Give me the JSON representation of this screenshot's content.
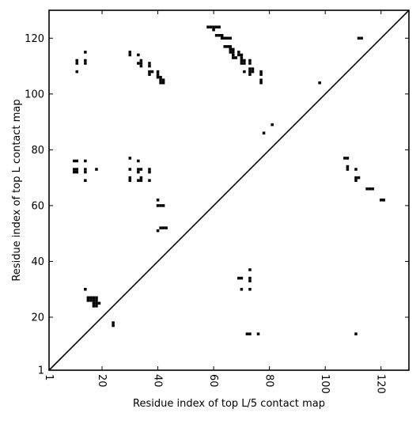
{
  "chart_data": {
    "type": "scatter",
    "title": "",
    "xlabel": "Residue index of top L/5 contact map",
    "ylabel": "Residue index of top L contact map",
    "xlim": [
      1,
      130
    ],
    "ylim": [
      1,
      130
    ],
    "x_ticks": [
      1,
      20,
      40,
      60,
      80,
      100,
      120
    ],
    "y_ticks": [
      1,
      20,
      40,
      60,
      80,
      100,
      120
    ],
    "x_tick_labels": [
      "1",
      "20",
      "40",
      "60",
      "80",
      "100",
      "120"
    ],
    "y_tick_labels": [
      "1",
      "20",
      "40",
      "60",
      "80",
      "100",
      "120"
    ],
    "x_tick_rotation": "vertical",
    "grid": false,
    "diagonal": true,
    "marker": "filled square",
    "marker_color": "#000000",
    "upper_triangle_points": [
      [
        11,
        108
      ],
      [
        11,
        111
      ],
      [
        11,
        112
      ],
      [
        14,
        111
      ],
      [
        14,
        112
      ],
      [
        14,
        115
      ],
      [
        30,
        114
      ],
      [
        30,
        115
      ],
      [
        33,
        111
      ],
      [
        33,
        114
      ],
      [
        34,
        110
      ],
      [
        34,
        111
      ],
      [
        34,
        112
      ],
      [
        37,
        107
      ],
      [
        37,
        108
      ],
      [
        37,
        110
      ],
      [
        37,
        111
      ],
      [
        38,
        108
      ],
      [
        40,
        106
      ],
      [
        40,
        107
      ],
      [
        40,
        108
      ],
      [
        41,
        104
      ],
      [
        41,
        105
      ],
      [
        41,
        106
      ],
      [
        42,
        104
      ],
      [
        42,
        105
      ],
      [
        58,
        124
      ],
      [
        59,
        124
      ],
      [
        60,
        123
      ],
      [
        60,
        124
      ],
      [
        61,
        121
      ],
      [
        61,
        124
      ],
      [
        62,
        121
      ],
      [
        62,
        124
      ],
      [
        63,
        120
      ],
      [
        63,
        121
      ],
      [
        64,
        117
      ],
      [
        64,
        120
      ],
      [
        65,
        117
      ],
      [
        65,
        120
      ],
      [
        66,
        115
      ],
      [
        66,
        116
      ],
      [
        66,
        117
      ],
      [
        66,
        120
      ],
      [
        67,
        113
      ],
      [
        67,
        114
      ],
      [
        67,
        115
      ],
      [
        67,
        116
      ],
      [
        68,
        113
      ],
      [
        69,
        114
      ],
      [
        69,
        115
      ],
      [
        70,
        111
      ],
      [
        70,
        112
      ],
      [
        70,
        113
      ],
      [
        70,
        114
      ],
      [
        71,
        108
      ],
      [
        71,
        111
      ],
      [
        71,
        112
      ],
      [
        73,
        107
      ],
      [
        73,
        108
      ],
      [
        73,
        109
      ],
      [
        73,
        111
      ],
      [
        73,
        112
      ],
      [
        74,
        108
      ],
      [
        74,
        109
      ],
      [
        77,
        104
      ],
      [
        77,
        105
      ],
      [
        77,
        107
      ],
      [
        77,
        108
      ],
      [
        98,
        104
      ],
      [
        112,
        120
      ],
      [
        113,
        120
      ],
      [
        10,
        72
      ],
      [
        10,
        73
      ],
      [
        10,
        76
      ],
      [
        11,
        72
      ],
      [
        11,
        73
      ],
      [
        11,
        76
      ],
      [
        14,
        69
      ],
      [
        14,
        72
      ],
      [
        14,
        73
      ],
      [
        14,
        76
      ],
      [
        18,
        73
      ],
      [
        30,
        69
      ],
      [
        30,
        70
      ],
      [
        30,
        73
      ],
      [
        30,
        77
      ],
      [
        33,
        69
      ],
      [
        33,
        72
      ],
      [
        33,
        73
      ],
      [
        33,
        76
      ],
      [
        34,
        69
      ],
      [
        34,
        70
      ],
      [
        34,
        73
      ],
      [
        37,
        69
      ],
      [
        37,
        72
      ],
      [
        37,
        73
      ],
      [
        40,
        51
      ],
      [
        40,
        60
      ],
      [
        40,
        62
      ],
      [
        41,
        52
      ],
      [
        41,
        60
      ],
      [
        42,
        52
      ],
      [
        42,
        60
      ],
      [
        43,
        52
      ],
      [
        78,
        86
      ],
      [
        81,
        89
      ],
      [
        14,
        30
      ],
      [
        15,
        26
      ],
      [
        15,
        27
      ],
      [
        16,
        26
      ],
      [
        16,
        27
      ],
      [
        17,
        24
      ],
      [
        17,
        25
      ],
      [
        17,
        26
      ],
      [
        17,
        27
      ],
      [
        18,
        24
      ],
      [
        18,
        25
      ],
      [
        18,
        26
      ],
      [
        18,
        27
      ],
      [
        19,
        25
      ],
      [
        24,
        17
      ],
      [
        24,
        18
      ]
    ],
    "lower_triangle_points": [
      [
        69,
        34
      ],
      [
        70,
        30
      ],
      [
        70,
        34
      ],
      [
        73,
        30
      ],
      [
        73,
        33
      ],
      [
        73,
        34
      ],
      [
        73,
        37
      ],
      [
        72,
        14
      ],
      [
        73,
        14
      ],
      [
        76,
        14
      ],
      [
        107,
        77
      ],
      [
        108,
        73
      ],
      [
        108,
        74
      ],
      [
        108,
        77
      ],
      [
        111,
        69
      ],
      [
        111,
        70
      ],
      [
        111,
        73
      ],
      [
        112,
        70
      ],
      [
        115,
        66
      ],
      [
        116,
        66
      ],
      [
        117,
        66
      ],
      [
        120,
        62
      ],
      [
        121,
        62
      ],
      [
        111,
        14
      ]
    ]
  }
}
